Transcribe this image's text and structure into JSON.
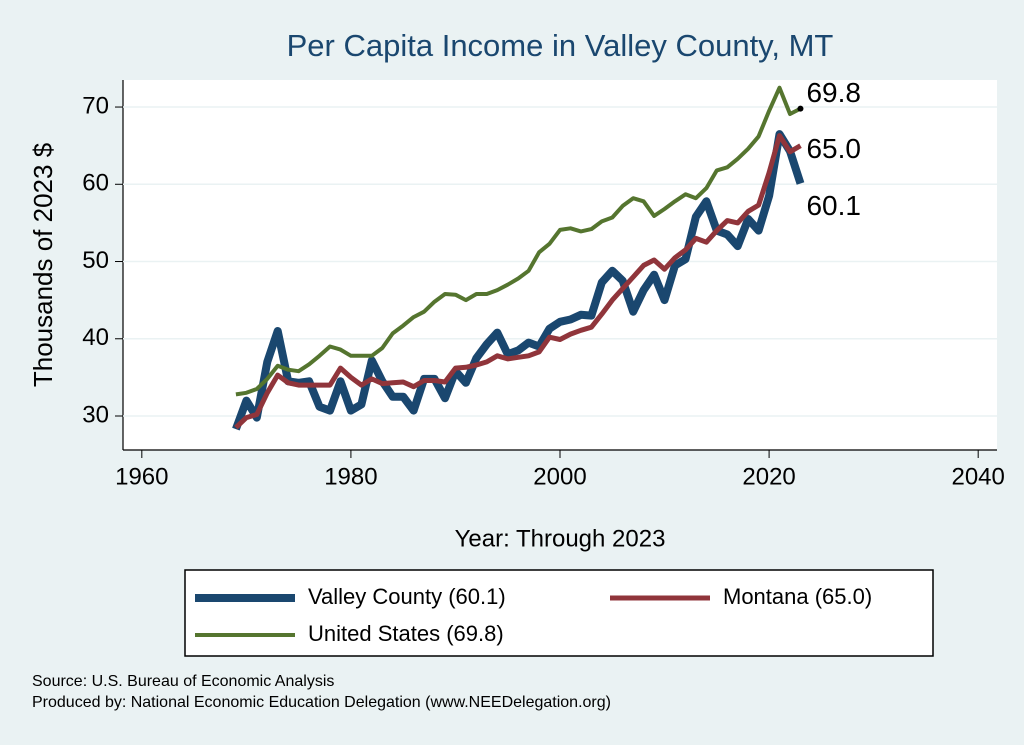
{
  "chart_data": {
    "type": "line",
    "title": "Per Capita Income in Valley County, MT",
    "x_label": "Year: Through 2023",
    "y_label": "Thousands of 2023 $",
    "x": [
      1969,
      1970,
      1971,
      1972,
      1973,
      1974,
      1975,
      1976,
      1977,
      1978,
      1979,
      1980,
      1981,
      1982,
      1983,
      1984,
      1985,
      1986,
      1987,
      1988,
      1989,
      1990,
      1991,
      1992,
      1993,
      1994,
      1995,
      1996,
      1997,
      1998,
      1999,
      2000,
      2001,
      2002,
      2003,
      2004,
      2005,
      2006,
      2007,
      2008,
      2009,
      2010,
      2011,
      2012,
      2013,
      2014,
      2015,
      2016,
      2017,
      2018,
      2019,
      2020,
      2021,
      2022,
      2023
    ],
    "series": [
      {
        "name": "Valley County (60.1)",
        "color": "#1a476f",
        "end_label": "60.1",
        "values": [
          28.3,
          32,
          29.8,
          37,
          41,
          34.5,
          34.3,
          34.5,
          31.2,
          30.7,
          34.5,
          30.7,
          31.5,
          37.2,
          34.5,
          32.5,
          32.5,
          30.7,
          34.8,
          34.8,
          32.3,
          35.8,
          34.3,
          37.5,
          39.3,
          40.8,
          38,
          38.5,
          39.5,
          39,
          41.3,
          42.2,
          42.5,
          43.1,
          43,
          47.3,
          48.8,
          47.5,
          43.5,
          46.3,
          48.3,
          45,
          49.5,
          50.3,
          55.8,
          57.8,
          54,
          53.5,
          52,
          55.5,
          54,
          58.5,
          66.5,
          64.3,
          60.1
        ]
      },
      {
        "name": "Montana (65.0)",
        "color": "#90353b",
        "end_label": "65.0",
        "values": [
          28.5,
          29.8,
          30.2,
          33,
          35.3,
          34.3,
          34,
          34,
          34,
          34,
          36.2,
          35,
          34,
          34.8,
          34.2,
          34.3,
          34.4,
          33.8,
          34.6,
          34.6,
          34.4,
          36.2,
          36.3,
          36.6,
          37,
          37.8,
          37.4,
          37.6,
          37.8,
          38.3,
          40.2,
          39.9,
          40.6,
          41.1,
          41.5,
          43.2,
          45,
          46.5,
          48,
          49.5,
          50.2,
          49,
          50.5,
          51.5,
          53,
          52.5,
          54,
          55.3,
          55,
          56.5,
          57.3,
          61.5,
          66.3,
          64.2,
          65.0
        ]
      },
      {
        "name": "United States (69.8)",
        "color": "#55752f",
        "end_label": "69.8",
        "values": [
          32.8,
          33,
          33.5,
          34.8,
          36.5,
          36,
          35.8,
          36.7,
          37.8,
          39,
          38.6,
          37.8,
          37.8,
          37.8,
          38.8,
          40.7,
          41.7,
          42.8,
          43.5,
          44.8,
          45.8,
          45.7,
          45,
          45.8,
          45.8,
          46.3,
          47,
          47.8,
          48.8,
          51.2,
          52.3,
          54.1,
          54.3,
          53.9,
          54.2,
          55.2,
          55.7,
          57.2,
          58.2,
          57.8,
          55.9,
          56.8,
          57.8,
          58.7,
          58.2,
          59.5,
          61.8,
          62.2,
          63.3,
          64.6,
          66.2,
          69.5,
          72.5,
          69.1,
          69.8
        ]
      }
    ],
    "xlim": [
      1958.2,
      2041.8
    ],
    "xticks": [
      1960,
      1980,
      2000,
      2020,
      2040
    ],
    "ylim": [
      25.6,
      73.5
    ],
    "yticks": [
      30,
      40,
      50,
      60,
      70
    ],
    "grid": true,
    "source": "Source: U.S. Bureau of Economic Analysis",
    "producer": "Produced by: National Economic Education Delegation (www.NEEDelegation.org)"
  }
}
